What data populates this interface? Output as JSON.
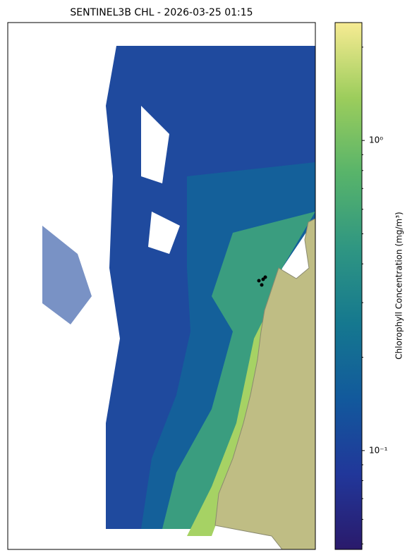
{
  "chart_data": {
    "type": "map",
    "title": "SENTINEL3B CHL - 2026-03-25 01:15",
    "colorbar": {
      "label": "Chlorophyll Concentration (mg/m³)",
      "scale": "log",
      "lim": [
        0.048,
        2.4
      ],
      "ticks": [
        {
          "value": 0.1,
          "label": "10⁻¹"
        },
        {
          "value": 1,
          "label": "10⁰"
        }
      ],
      "minor_ticks": [
        0.05,
        0.06,
        0.07,
        0.08,
        0.09,
        0.2,
        0.3,
        0.4,
        0.5,
        0.6,
        0.7,
        0.8,
        0.9,
        2
      ],
      "colormap": [
        "#2a1a6b",
        "#21379a",
        "#12599c",
        "#15788f",
        "#2f9682",
        "#58b46a",
        "#9ccd5c",
        "#f7eb93"
      ]
    }
  }
}
